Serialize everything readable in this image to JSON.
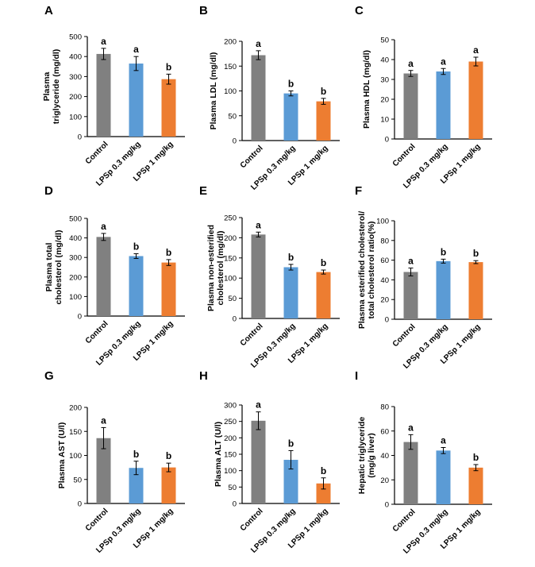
{
  "colors": {
    "control": "#808080",
    "low": "#5b9bd5",
    "high": "#ed7d31",
    "axis": "#000000"
  },
  "chart_data": [
    {
      "type": "bar",
      "panel": "A",
      "ylabel": [
        "Plasma",
        "triglyceride (mg/dl)"
      ],
      "categories": [
        "Control",
        "LPSp 0.3 mg/kg",
        "LPSp 1 mg/kg"
      ],
      "values": [
        413,
        365,
        287
      ],
      "errors": [
        28,
        35,
        25
      ],
      "letters": [
        "a",
        "a",
        "b"
      ],
      "ylim": [
        0,
        500
      ],
      "yticks": [
        "0",
        "100",
        "200",
        "300",
        "400",
        "500"
      ]
    },
    {
      "type": "bar",
      "panel": "B",
      "ylabel": [
        "Plasma LDL (mg/dl)"
      ],
      "categories": [
        "Control",
        "LPSp 0.3 mg/kg",
        "LPSp 1 mg/kg"
      ],
      "values": [
        172,
        95,
        79
      ],
      "errors": [
        9,
        5,
        6
      ],
      "letters": [
        "a",
        "b",
        "b"
      ],
      "ylim": [
        0,
        200
      ],
      "yticks": [
        "0",
        "50",
        "100",
        "150",
        "200"
      ]
    },
    {
      "type": "bar",
      "panel": "C",
      "ylabel": [
        "Plasma HDL (mg/dl)"
      ],
      "categories": [
        "Control",
        "LPSp 0.3 mg/kg",
        "LPSp 1 mg/kg"
      ],
      "values": [
        33,
        34,
        39
      ],
      "errors": [
        1.5,
        1.5,
        2.2
      ],
      "letters": [
        "a",
        "a",
        "a"
      ],
      "ylim": [
        0,
        50
      ],
      "yticks": [
        "0",
        "10",
        "20",
        "30",
        "40",
        "50"
      ]
    },
    {
      "type": "bar",
      "panel": "D",
      "ylabel": [
        "Plasma total",
        "cholesterol (mg/dl)"
      ],
      "categories": [
        "Control",
        "LPSp 0.3 mg/kg",
        "LPSp 1 mg/kg"
      ],
      "values": [
        405,
        307,
        274
      ],
      "errors": [
        18,
        12,
        15
      ],
      "letters": [
        "a",
        "b",
        "b"
      ],
      "ylim": [
        0,
        500
      ],
      "yticks": [
        "0",
        "100",
        "200",
        "300",
        "400",
        "500"
      ]
    },
    {
      "type": "bar",
      "panel": "E",
      "ylabel": [
        "Plasma non-esterified",
        "cholesterol (mg/dl)"
      ],
      "categories": [
        "Control",
        "LPSp 0.3 mg/kg",
        "LPSp 1 mg/kg"
      ],
      "values": [
        208,
        127,
        115
      ],
      "errors": [
        6,
        7,
        5
      ],
      "letters": [
        "a",
        "b",
        "b"
      ],
      "ylim": [
        0,
        250
      ],
      "yticks": [
        "0",
        "50",
        "100",
        "150",
        "200",
        "250"
      ]
    },
    {
      "type": "bar",
      "panel": "F",
      "ylabel": [
        "Plasma esterified cholesterol/",
        "total cholesterol ratio(%)"
      ],
      "categories": [
        "Control",
        "LPSp 0.3 mg/kg",
        "LPSp 1 mg/kg"
      ],
      "values": [
        48,
        59,
        58
      ],
      "errors": [
        4,
        2,
        1.5
      ],
      "letters": [
        "a",
        "b",
        "b"
      ],
      "ylim": [
        0,
        100
      ],
      "yticks": [
        "0",
        "20",
        "40",
        "60",
        "80",
        "100"
      ]
    },
    {
      "type": "bar",
      "panel": "G",
      "ylabel": [
        "Plasma AST (U/l)"
      ],
      "categories": [
        "Control",
        "LPSp 0.3 mg/kg",
        "LPSp 1 mg/kg"
      ],
      "values": [
        136,
        74,
        75
      ],
      "errors": [
        22,
        14,
        9
      ],
      "letters": [
        "a",
        "b",
        "b"
      ],
      "ylim": [
        0,
        200
      ],
      "yticks": [
        "0",
        "50",
        "100",
        "150",
        "200"
      ]
    },
    {
      "type": "bar",
      "panel": "H",
      "ylabel": [
        "Plasma ALT (U/l)"
      ],
      "categories": [
        "Control",
        "LPSp 0.3 mg/kg",
        "LPSp 1 mg/kg"
      ],
      "values": [
        252,
        133,
        61
      ],
      "errors": [
        27,
        28,
        17
      ],
      "letters": [
        "a",
        "b",
        "b"
      ],
      "ylim": [
        0,
        300
      ],
      "yticks": [
        "0",
        "50",
        "100",
        "150",
        "200",
        "250",
        "300"
      ]
    },
    {
      "type": "bar",
      "panel": "I",
      "ylabel": [
        "Hepatic triglyceride",
        "(mg/g liver)"
      ],
      "categories": [
        "Control",
        "LPSp 0.3 mg/kg",
        "LPSp 1 mg/kg"
      ],
      "values": [
        51,
        44,
        30
      ],
      "errors": [
        6,
        2.5,
        2.5
      ],
      "letters": [
        "a",
        "a",
        "b"
      ],
      "ylim": [
        0,
        80
      ],
      "yticks": [
        "0",
        "20",
        "40",
        "60",
        "80"
      ]
    }
  ]
}
